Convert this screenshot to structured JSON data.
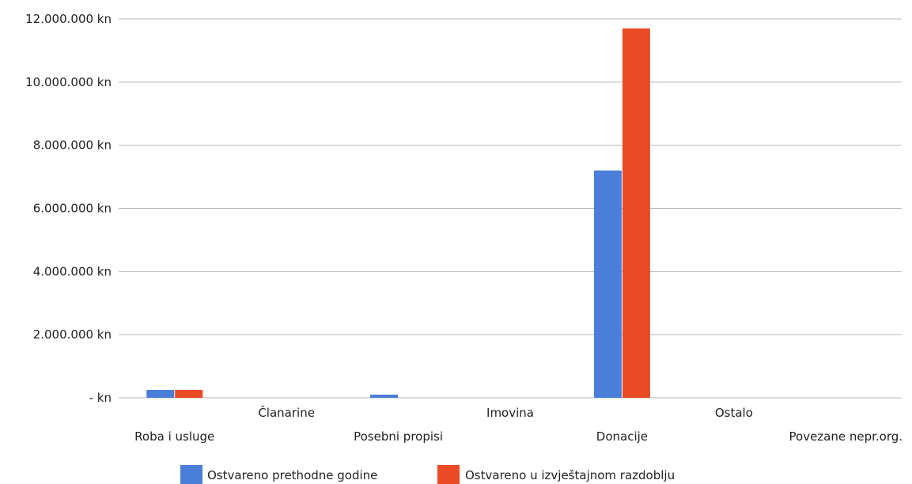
{
  "chart_data": {
    "type": "bar",
    "categories": [
      "Roba i usluge",
      "Članarine",
      "Posebni propisi",
      "Imovina",
      "Donacije",
      "Ostalo",
      "Povezane nepr.org."
    ],
    "series": [
      {
        "name": "Ostvareno prethodne godine",
        "color": "#4a7ed8",
        "values": [
          250000,
          0,
          100000,
          0,
          7200000,
          0,
          0
        ]
      },
      {
        "name": "Ostvareno u izvještajnom razdoblju",
        "color": "#ea4a25",
        "values": [
          250000,
          0,
          0,
          0,
          11700000,
          0,
          0
        ]
      }
    ],
    "ylim": [
      0,
      12000000
    ],
    "yticks": [
      0,
      2000000,
      4000000,
      6000000,
      8000000,
      10000000,
      12000000
    ],
    "ytick_labels": [
      "- kn",
      "2.000.000 kn",
      "4.000.000 kn",
      "6.000.000 kn",
      "8.000.000 kn",
      "10.000.000 kn",
      "12.000.000 kn"
    ],
    "grid": true,
    "legend_position": "bottom",
    "title": "",
    "xlabel": "",
    "ylabel": ""
  }
}
